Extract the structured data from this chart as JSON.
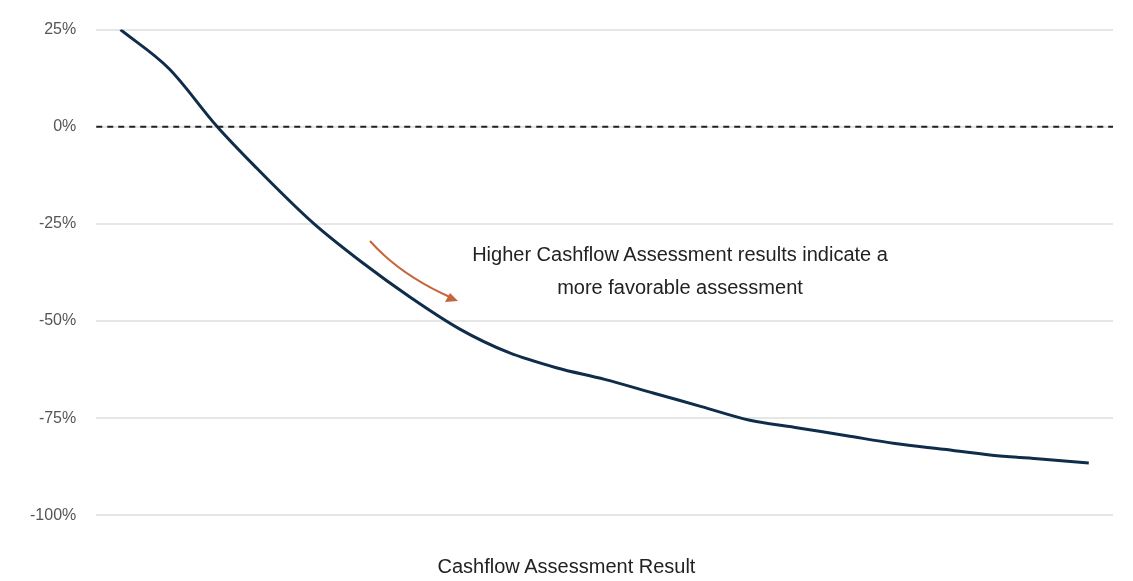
{
  "chart_data": {
    "type": "line",
    "xlabel": "Cashflow Assessment Result",
    "categories": [
      null,
      null,
      null,
      null,
      null,
      null,
      null,
      null,
      null,
      null,
      null,
      null,
      null,
      null,
      null,
      null,
      null,
      null,
      null,
      null,
      null
    ],
    "series": [
      {
        "color": "#0f2d4a",
        "values": [
          25,
          15,
          0,
          -13,
          -25,
          -35,
          -44,
          -52,
          -58,
          -62,
          -65,
          -68.5,
          -72,
          -75.5,
          -77.5,
          -79.5,
          -81.5,
          -83,
          -84.5,
          -85.5,
          -86.5
        ]
      }
    ],
    "ylim": [
      -100,
      25
    ],
    "yticks": [
      {
        "value": 25,
        "label": "25%"
      },
      {
        "value": 0,
        "label": "0%"
      },
      {
        "value": -25,
        "label": "-25%"
      },
      {
        "value": -50,
        "label": "-50%"
      },
      {
        "value": -75,
        "label": "-75%"
      },
      {
        "value": -100,
        "label": "-100%"
      }
    ],
    "grid": "y",
    "tick_labels": "y",
    "legend": false,
    "marker": "none",
    "line_style": "solid",
    "ref_lines": [
      {
        "axis": "y",
        "value": 0,
        "color": "#222222",
        "line_style": "dashed"
      }
    ],
    "annotations": [
      "Higher Cashflow Assessment results indicate a more favorable assessment"
    ]
  }
}
